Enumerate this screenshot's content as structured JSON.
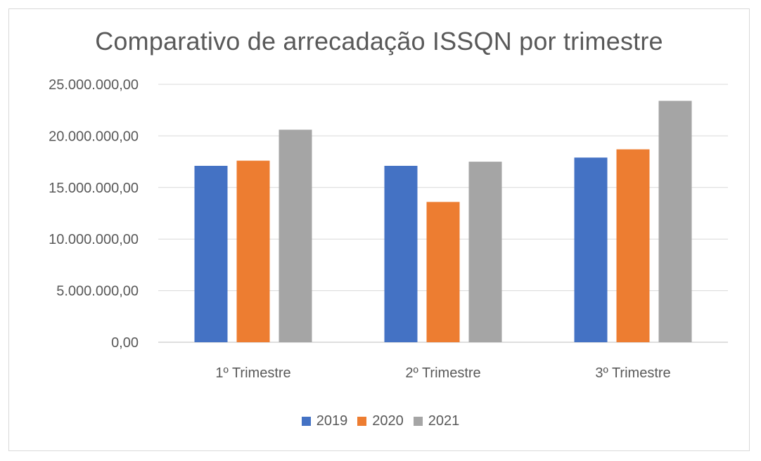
{
  "chart_data": {
    "type": "bar",
    "title": "Comparativo de arrecadação ISSQN por trimestre",
    "categories": [
      "1º Trimestre",
      "2º Trimestre",
      "3º Trimestre"
    ],
    "series": [
      {
        "name": "2019",
        "color": "#4472c4",
        "values": [
          17100000,
          17100000,
          17900000
        ]
      },
      {
        "name": "2020",
        "color": "#ed7d31",
        "values": [
          17600000,
          13600000,
          18700000
        ]
      },
      {
        "name": "2021",
        "color": "#a5a5a5",
        "values": [
          20600000,
          17500000,
          23400000
        ]
      }
    ],
    "y_ticks": [
      "0,00",
      "5.000.000,00",
      "10.000.000,00",
      "15.000.000,00",
      "20.000.000,00",
      "25.000.000,00"
    ],
    "ylim": [
      0,
      25000000
    ],
    "grid": true,
    "legend_position": "bottom"
  }
}
